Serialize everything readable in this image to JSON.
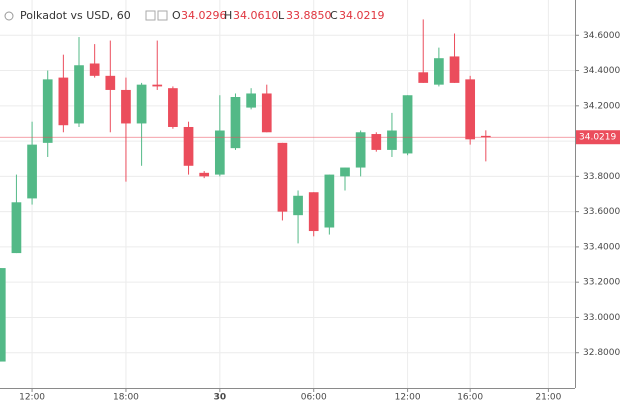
{
  "chart_data": {
    "type": "candlestick",
    "title": "Polkadot vs USD, 60",
    "ohlc_legend": {
      "open_key": "O",
      "open": "34.0296",
      "high_key": "H",
      "high": "34.0610",
      "low_key": "L",
      "low": "33.8850",
      "close_key": "C",
      "close": "34.0219"
    },
    "up_color": "#53b987",
    "down_color": "#eb4d5c",
    "grid": true,
    "x": [
      10,
      11,
      12,
      13,
      14,
      15,
      16,
      17,
      18,
      19,
      20,
      21,
      22,
      23,
      24,
      25,
      26,
      27,
      28,
      29,
      30,
      31,
      32,
      33,
      34,
      35,
      36,
      37,
      38,
      39,
      40,
      41
    ],
    "open": [
      32.75,
      33.365,
      33.675,
      33.99,
      34.36,
      34.1,
      34.44,
      34.37,
      34.29,
      34.1,
      34.32,
      34.3,
      34.08,
      33.82,
      33.81,
      33.96,
      34.19,
      34.27,
      33.99,
      33.58,
      33.71,
      33.51,
      33.8,
      33.85,
      34.04,
      33.95,
      33.93,
      34.39,
      34.32,
      34.48,
      34.35,
      34.0296
    ],
    "high": [
      33.28,
      33.81,
      34.11,
      34.4,
      34.49,
      34.59,
      34.55,
      34.57,
      34.36,
      34.33,
      34.57,
      34.31,
      34.11,
      33.83,
      34.26,
      34.27,
      34.3,
      34.32,
      33.99,
      33.72,
      33.71,
      33.81,
      33.85,
      34.06,
      34.05,
      34.16,
      34.26,
      34.69,
      34.53,
      34.61,
      34.37,
      34.061
    ],
    "low": [
      32.75,
      33.365,
      33.64,
      33.91,
      34.05,
      34.08,
      34.36,
      34.05,
      33.77,
      33.86,
      34.29,
      34.07,
      33.81,
      33.79,
      33.8,
      33.95,
      34.18,
      34.05,
      33.55,
      33.42,
      33.46,
      33.47,
      33.72,
      33.8,
      33.94,
      33.91,
      33.92,
      34.33,
      34.31,
      34.33,
      33.98,
      33.885
    ],
    "close": [
      33.28,
      33.653,
      33.98,
      34.35,
      34.09,
      34.43,
      34.37,
      34.29,
      34.1,
      34.32,
      34.31,
      34.08,
      33.86,
      33.8,
      34.06,
      34.25,
      34.27,
      34.05,
      33.6,
      33.69,
      33.49,
      33.81,
      33.85,
      34.05,
      33.95,
      34.06,
      34.26,
      34.33,
      34.47,
      34.33,
      34.01,
      34.0219
    ],
    "xlim": [
      9.95,
      46.7
    ],
    "xticks": [
      {
        "value": 12,
        "label": "12:00"
      },
      {
        "value": 18,
        "label": "18:00"
      },
      {
        "value": 24,
        "label": "30"
      },
      {
        "value": 30,
        "label": "06:00"
      },
      {
        "value": 36,
        "label": "12:00"
      },
      {
        "value": 40,
        "label": "16:00"
      },
      {
        "value": 45,
        "label": "21:00"
      }
    ],
    "ylim": [
      32.6,
      34.8
    ],
    "yticks": [
      {
        "value": 32.8,
        "label": "32.8000"
      },
      {
        "value": 33.0,
        "label": "33.0000"
      },
      {
        "value": 33.2,
        "label": "33.2000"
      },
      {
        "value": 33.4,
        "label": "33.4000"
      },
      {
        "value": 33.6,
        "label": "33.6000"
      },
      {
        "value": 33.8,
        "label": "33.8000"
      },
      {
        "value": 34.0,
        "label": "34.0000"
      },
      {
        "value": 34.2,
        "label": "34.2000"
      },
      {
        "value": 34.4,
        "label": "34.4000"
      },
      {
        "value": 34.6,
        "label": "34.6000"
      }
    ]
  }
}
